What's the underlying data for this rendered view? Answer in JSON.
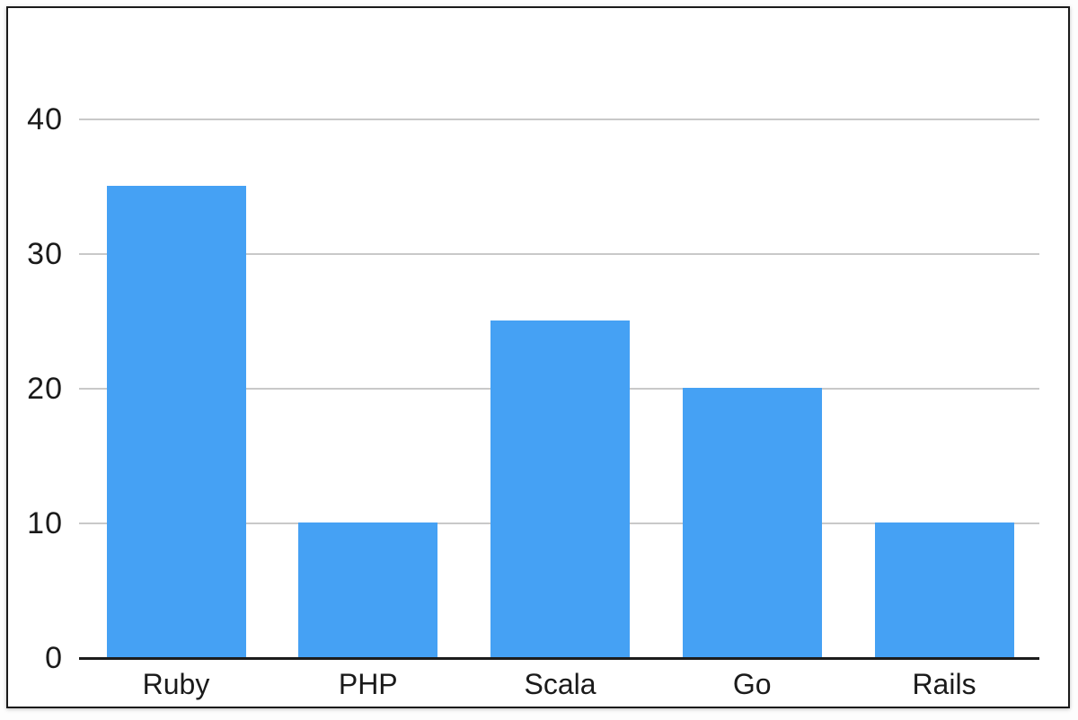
{
  "chart_data": {
    "type": "bar",
    "title": "",
    "xlabel": "",
    "ylabel": "",
    "categories": [
      "Ruby",
      "PHP",
      "Scala",
      "Go",
      "Rails"
    ],
    "values": [
      35,
      10,
      25,
      20,
      10
    ],
    "yticks": [
      0,
      10,
      20,
      30,
      40
    ],
    "ylim": [
      0,
      43
    ],
    "grid": true,
    "legend": false,
    "colors": {
      "bar": "#45a1f4",
      "gridline": "#c9c9c9",
      "axis_line": "#1c1c1c",
      "tick_text": "#1a1a1a",
      "frame_border": "#1a1a1a",
      "plot_background": "#ffffff"
    }
  }
}
